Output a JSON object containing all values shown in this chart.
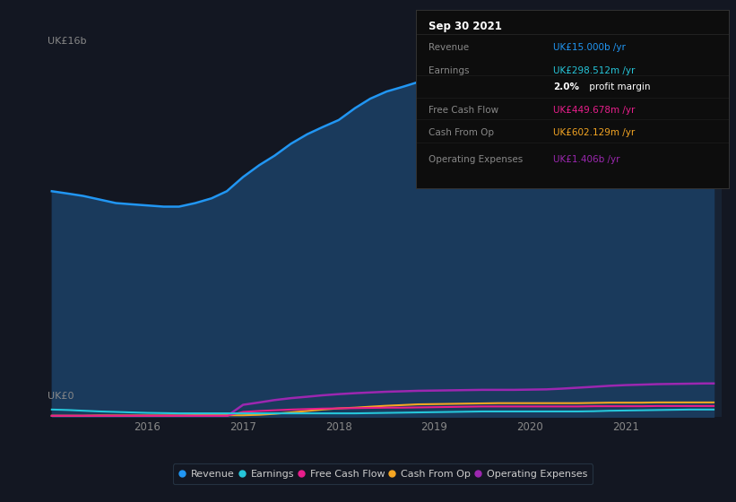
{
  "bg_color": "#131722",
  "plot_bg_color": "#131722",
  "chart_fill_color": "#132036",
  "title_box_bg": "#0a0a0a",
  "ylabel_top": "UK£16b",
  "ylabel_bottom": "UK£0",
  "x_years": [
    2015.0,
    2015.17,
    2015.33,
    2015.5,
    2015.67,
    2015.83,
    2016.0,
    2016.17,
    2016.33,
    2016.5,
    2016.67,
    2016.83,
    2017.0,
    2017.17,
    2017.33,
    2017.5,
    2017.67,
    2017.83,
    2018.0,
    2018.17,
    2018.33,
    2018.5,
    2018.67,
    2018.83,
    2019.0,
    2019.17,
    2019.33,
    2019.5,
    2019.67,
    2019.83,
    2020.0,
    2020.17,
    2020.33,
    2020.5,
    2020.67,
    2020.83,
    2021.0,
    2021.17,
    2021.33,
    2021.5,
    2021.67,
    2021.83,
    2021.92
  ],
  "revenue": [
    9.5,
    9.4,
    9.3,
    9.15,
    9.0,
    8.95,
    8.9,
    8.85,
    8.85,
    9.0,
    9.2,
    9.5,
    10.1,
    10.6,
    11.0,
    11.5,
    11.9,
    12.2,
    12.5,
    13.0,
    13.4,
    13.7,
    13.9,
    14.1,
    14.4,
    14.9,
    15.2,
    15.3,
    15.2,
    14.9,
    14.6,
    14.0,
    13.4,
    12.9,
    12.6,
    12.5,
    12.5,
    12.7,
    13.2,
    13.9,
    14.5,
    14.9,
    15.0
  ],
  "earnings": [
    0.3,
    0.28,
    0.25,
    0.22,
    0.2,
    0.18,
    0.16,
    0.15,
    0.14,
    0.14,
    0.14,
    0.14,
    0.14,
    0.14,
    0.14,
    0.14,
    0.14,
    0.14,
    0.14,
    0.14,
    0.15,
    0.16,
    0.17,
    0.18,
    0.19,
    0.2,
    0.21,
    0.22,
    0.22,
    0.22,
    0.22,
    0.22,
    0.22,
    0.22,
    0.23,
    0.25,
    0.26,
    0.27,
    0.28,
    0.29,
    0.3,
    0.3,
    0.3
  ],
  "free_cash_flow": [
    0.04,
    0.04,
    0.04,
    0.04,
    0.04,
    0.04,
    0.04,
    0.04,
    0.04,
    0.04,
    0.04,
    0.04,
    0.2,
    0.24,
    0.27,
    0.3,
    0.32,
    0.34,
    0.35,
    0.36,
    0.37,
    0.38,
    0.38,
    0.39,
    0.4,
    0.41,
    0.42,
    0.43,
    0.43,
    0.43,
    0.43,
    0.43,
    0.43,
    0.43,
    0.44,
    0.44,
    0.44,
    0.44,
    0.45,
    0.45,
    0.45,
    0.45,
    0.45
  ],
  "cash_from_op": [
    0.04,
    0.04,
    0.04,
    0.05,
    0.05,
    0.05,
    0.05,
    0.05,
    0.05,
    0.06,
    0.06,
    0.06,
    0.06,
    0.08,
    0.12,
    0.18,
    0.24,
    0.3,
    0.35,
    0.38,
    0.42,
    0.46,
    0.49,
    0.52,
    0.53,
    0.54,
    0.55,
    0.56,
    0.57,
    0.57,
    0.57,
    0.57,
    0.57,
    0.57,
    0.58,
    0.59,
    0.59,
    0.59,
    0.6,
    0.6,
    0.6,
    0.6,
    0.6
  ],
  "operating_expenses": [
    0.02,
    0.02,
    0.02,
    0.02,
    0.02,
    0.02,
    0.02,
    0.02,
    0.02,
    0.02,
    0.02,
    0.02,
    0.5,
    0.6,
    0.7,
    0.78,
    0.84,
    0.9,
    0.95,
    0.99,
    1.02,
    1.05,
    1.07,
    1.09,
    1.1,
    1.11,
    1.12,
    1.13,
    1.13,
    1.13,
    1.14,
    1.15,
    1.18,
    1.22,
    1.26,
    1.3,
    1.33,
    1.35,
    1.37,
    1.38,
    1.39,
    1.4,
    1.4
  ],
  "revenue_color": "#2196f3",
  "revenue_fill_color": "#1a3a5c",
  "earnings_color": "#26c6da",
  "free_cash_flow_color": "#e91e8c",
  "cash_from_op_color": "#f5a623",
  "operating_expenses_color": "#9c27b0",
  "grid_color": "#2a3a4a",
  "tick_color": "#888888",
  "highlight_band_color": "#1c2d45",
  "info_box": {
    "date": "Sep 30 2021",
    "date_color": "#ffffff",
    "border_color": "#333333",
    "bg_color": "#0d0d0d",
    "rows": [
      {
        "label": "Revenue",
        "value": "UK£15.000b /yr",
        "label_color": "#888888",
        "value_color": "#2196f3"
      },
      {
        "label": "Earnings",
        "value": "UK£298.512m /yr",
        "label_color": "#888888",
        "value_color": "#26c6da"
      },
      {
        "label": "",
        "value": "2.0% profit margin",
        "label_color": "#888888",
        "value_color": "#ffffff"
      },
      {
        "label": "Free Cash Flow",
        "value": "UK£449.678m /yr",
        "label_color": "#888888",
        "value_color": "#e91e8c"
      },
      {
        "label": "Cash From Op",
        "value": "UK£602.129m /yr",
        "label_color": "#888888",
        "value_color": "#f5a623"
      },
      {
        "label": "Operating Expenses",
        "value": "UK£1.406b /yr",
        "label_color": "#888888",
        "value_color": "#9c27b0"
      }
    ]
  },
  "legend_items": [
    {
      "label": "Revenue",
      "color": "#2196f3"
    },
    {
      "label": "Earnings",
      "color": "#26c6da"
    },
    {
      "label": "Free Cash Flow",
      "color": "#e91e8c"
    },
    {
      "label": "Cash From Op",
      "color": "#f5a623"
    },
    {
      "label": "Operating Expenses",
      "color": "#9c27b0"
    }
  ],
  "ylim": [
    0,
    16.5
  ],
  "xlim": [
    2014.92,
    2022.0
  ]
}
